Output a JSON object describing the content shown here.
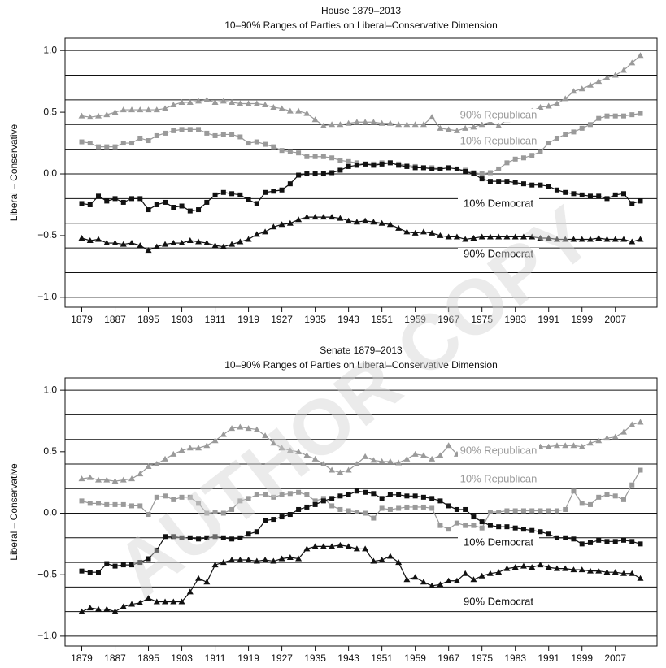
{
  "watermark": "AUTHOR COPY",
  "chart_data": [
    {
      "type": "line",
      "title": "House 1879–2013",
      "subtitle": "10–90% Ranges of Parties on Liberal–Conservative Dimension",
      "ylabel": "Liberal – Conservative",
      "x": [
        1879,
        1881,
        1883,
        1885,
        1887,
        1889,
        1891,
        1893,
        1895,
        1897,
        1899,
        1901,
        1903,
        1905,
        1907,
        1909,
        1911,
        1913,
        1915,
        1917,
        1919,
        1921,
        1923,
        1925,
        1927,
        1929,
        1931,
        1933,
        1935,
        1937,
        1939,
        1941,
        1943,
        1945,
        1947,
        1949,
        1951,
        1953,
        1955,
        1957,
        1959,
        1961,
        1963,
        1965,
        1967,
        1969,
        1971,
        1973,
        1975,
        1977,
        1979,
        1981,
        1983,
        1985,
        1987,
        1989,
        1991,
        1993,
        1995,
        1997,
        1999,
        2001,
        2003,
        2005,
        2007,
        2009,
        2011,
        2013
      ],
      "xlim": [
        1875,
        2017
      ],
      "xticks": [
        1879,
        1887,
        1895,
        1903,
        1911,
        1919,
        1927,
        1935,
        1943,
        1951,
        1959,
        1967,
        1975,
        1983,
        1991,
        1999,
        2007
      ],
      "ylim": [
        -1.08,
        1.1
      ],
      "yticks": [
        {
          "value": -1,
          "label": "−1.0"
        },
        {
          "value": -0.5,
          "label": "−0.5"
        },
        {
          "value": 0,
          "label": "0.0"
        },
        {
          "value": 0.5,
          "label": "0.5"
        },
        {
          "value": 1,
          "label": "1.0"
        }
      ],
      "hlines": [
        -1,
        -0.8,
        -0.6,
        -0.4,
        -0.2,
        0,
        0.2,
        0.4,
        0.6,
        0.8,
        1
      ],
      "series": [
        {
          "name": "90% Republican",
          "color": "#9a9a9a",
          "marker": "triangle",
          "values": [
            0.47,
            0.46,
            0.47,
            0.48,
            0.5,
            0.52,
            0.52,
            0.52,
            0.52,
            0.52,
            0.53,
            0.56,
            0.58,
            0.58,
            0.59,
            0.6,
            0.58,
            0.59,
            0.58,
            0.57,
            0.57,
            0.57,
            0.56,
            0.54,
            0.53,
            0.51,
            0.51,
            0.49,
            0.44,
            0.39,
            0.4,
            0.4,
            0.41,
            0.42,
            0.42,
            0.42,
            0.41,
            0.41,
            0.4,
            0.4,
            0.4,
            0.4,
            0.46,
            0.37,
            0.36,
            0.35,
            0.37,
            0.38,
            0.4,
            0.42,
            0.39,
            0.44,
            0.47,
            0.49,
            0.51,
            0.54,
            0.55,
            0.57,
            0.61,
            0.67,
            0.69,
            0.72,
            0.75,
            0.78,
            0.8,
            0.84,
            0.9,
            0.96
          ]
        },
        {
          "name": "10% Republican",
          "color": "#9a9a9a",
          "marker": "square",
          "values": [
            0.26,
            0.25,
            0.22,
            0.22,
            0.22,
            0.25,
            0.25,
            0.29,
            0.27,
            0.31,
            0.33,
            0.35,
            0.36,
            0.36,
            0.36,
            0.33,
            0.31,
            0.32,
            0.32,
            0.3,
            0.25,
            0.26,
            0.24,
            0.22,
            0.19,
            0.18,
            0.17,
            0.14,
            0.14,
            0.14,
            0.13,
            0.11,
            0.1,
            0.09,
            0.08,
            0.08,
            0.09,
            0.09,
            0.08,
            0.07,
            0.06,
            0.05,
            0.05,
            0.04,
            0.05,
            0.04,
            0.03,
            0.01,
            0.0,
            0.01,
            0.04,
            0.09,
            0.12,
            0.13,
            0.15,
            0.18,
            0.25,
            0.29,
            0.32,
            0.34,
            0.37,
            0.4,
            0.45,
            0.47,
            0.47,
            0.47,
            0.48,
            0.49
          ]
        },
        {
          "name": "10% Democrat",
          "color": "#111111",
          "marker": "square",
          "values": [
            -0.24,
            -0.25,
            -0.18,
            -0.22,
            -0.2,
            -0.23,
            -0.2,
            -0.2,
            -0.29,
            -0.25,
            -0.23,
            -0.27,
            -0.26,
            -0.3,
            -0.29,
            -0.23,
            -0.17,
            -0.15,
            -0.16,
            -0.17,
            -0.21,
            -0.24,
            -0.15,
            -0.14,
            -0.13,
            -0.08,
            -0.01,
            0.0,
            0.0,
            0.0,
            0.01,
            0.03,
            0.06,
            0.07,
            0.08,
            0.07,
            0.08,
            0.09,
            0.07,
            0.06,
            0.05,
            0.05,
            0.04,
            0.04,
            0.05,
            0.04,
            0.02,
            0.0,
            -0.04,
            -0.06,
            -0.06,
            -0.06,
            -0.07,
            -0.08,
            -0.09,
            -0.09,
            -0.1,
            -0.13,
            -0.15,
            -0.16,
            -0.17,
            -0.18,
            -0.18,
            -0.2,
            -0.17,
            -0.16,
            -0.24,
            -0.22
          ]
        },
        {
          "name": "90% Democrat",
          "color": "#111111",
          "marker": "triangle",
          "values": [
            -0.52,
            -0.54,
            -0.53,
            -0.56,
            -0.56,
            -0.57,
            -0.56,
            -0.58,
            -0.62,
            -0.59,
            -0.57,
            -0.56,
            -0.56,
            -0.54,
            -0.55,
            -0.56,
            -0.58,
            -0.59,
            -0.57,
            -0.55,
            -0.53,
            -0.49,
            -0.47,
            -0.43,
            -0.41,
            -0.4,
            -0.37,
            -0.35,
            -0.35,
            -0.35,
            -0.35,
            -0.36,
            -0.38,
            -0.39,
            -0.38,
            -0.39,
            -0.4,
            -0.41,
            -0.44,
            -0.47,
            -0.48,
            -0.47,
            -0.48,
            -0.5,
            -0.51,
            -0.51,
            -0.53,
            -0.52,
            -0.51,
            -0.51,
            -0.51,
            -0.51,
            -0.51,
            -0.51,
            -0.51,
            -0.52,
            -0.52,
            -0.53,
            -0.53,
            -0.53,
            -0.53,
            -0.53,
            -0.52,
            -0.53,
            -0.53,
            -0.53,
            -0.55,
            -0.53
          ]
        }
      ]
    },
    {
      "type": "line",
      "title": "Senate 1879–2013",
      "subtitle": "10–90% Ranges of Parties on Liberal–Conservative Dimension",
      "ylabel": "Liberal – Conservative",
      "x": [
        1879,
        1881,
        1883,
        1885,
        1887,
        1889,
        1891,
        1893,
        1895,
        1897,
        1899,
        1901,
        1903,
        1905,
        1907,
        1909,
        1911,
        1913,
        1915,
        1917,
        1919,
        1921,
        1923,
        1925,
        1927,
        1929,
        1931,
        1933,
        1935,
        1937,
        1939,
        1941,
        1943,
        1945,
        1947,
        1949,
        1951,
        1953,
        1955,
        1957,
        1959,
        1961,
        1963,
        1965,
        1967,
        1969,
        1971,
        1973,
        1975,
        1977,
        1979,
        1981,
        1983,
        1985,
        1987,
        1989,
        1991,
        1993,
        1995,
        1997,
        1999,
        2001,
        2003,
        2005,
        2007,
        2009,
        2011,
        2013
      ],
      "xlim": [
        1875,
        2017
      ],
      "xticks": [
        1879,
        1887,
        1895,
        1903,
        1911,
        1919,
        1927,
        1935,
        1943,
        1951,
        1959,
        1967,
        1975,
        1983,
        1991,
        1999,
        2007
      ],
      "ylim": [
        -1.08,
        1.1
      ],
      "yticks": [
        {
          "value": -1,
          "label": "−1.0"
        },
        {
          "value": -0.5,
          "label": "−0.5"
        },
        {
          "value": 0,
          "label": "0.0"
        },
        {
          "value": 0.5,
          "label": "0.5"
        },
        {
          "value": 1,
          "label": "1.0"
        }
      ],
      "hlines": [
        -1,
        -0.8,
        -0.6,
        -0.4,
        -0.2,
        0,
        0.2,
        0.4,
        0.6,
        0.8,
        1
      ],
      "series": [
        {
          "name": "90% Republican",
          "color": "#9a9a9a",
          "marker": "triangle",
          "values": [
            0.28,
            0.29,
            0.27,
            0.27,
            0.26,
            0.27,
            0.28,
            0.32,
            0.38,
            0.4,
            0.44,
            0.48,
            0.51,
            0.53,
            0.53,
            0.55,
            0.59,
            0.64,
            0.69,
            0.7,
            0.69,
            0.68,
            0.63,
            0.57,
            0.53,
            0.51,
            0.5,
            0.47,
            0.44,
            0.4,
            0.35,
            0.33,
            0.35,
            0.4,
            0.46,
            0.43,
            0.42,
            0.42,
            0.41,
            0.44,
            0.48,
            0.47,
            0.44,
            0.47,
            0.55,
            0.48,
            0.49,
            0.48,
            0.5,
            0.47,
            0.52,
            0.52,
            0.51,
            0.52,
            0.53,
            0.54,
            0.54,
            0.55,
            0.55,
            0.55,
            0.54,
            0.57,
            0.59,
            0.61,
            0.62,
            0.66,
            0.72,
            0.74
          ]
        },
        {
          "name": "10% Republican",
          "color": "#9a9a9a",
          "marker": "square",
          "values": [
            0.1,
            0.08,
            0.08,
            0.07,
            0.07,
            0.07,
            0.06,
            0.06,
            -0.01,
            0.13,
            0.14,
            0.11,
            0.13,
            0.13,
            0.08,
            0.0,
            0.01,
            0.0,
            0.03,
            0.1,
            0.12,
            0.15,
            0.15,
            0.13,
            0.15,
            0.16,
            0.17,
            0.15,
            0.1,
            0.12,
            0.06,
            0.03,
            0.02,
            0.01,
            0.0,
            -0.04,
            0.04,
            0.03,
            0.04,
            0.05,
            0.05,
            0.05,
            0.04,
            -0.1,
            -0.13,
            -0.08,
            -0.1,
            -0.1,
            -0.12,
            0.01,
            0.01,
            0.02,
            0.02,
            0.02,
            0.02,
            0.02,
            0.02,
            0.02,
            0.03,
            0.18,
            0.08,
            0.07,
            0.13,
            0.15,
            0.14,
            0.11,
            0.23,
            0.35
          ]
        },
        {
          "name": "10% Democrat",
          "color": "#111111",
          "marker": "square",
          "values": [
            -0.47,
            -0.48,
            -0.48,
            -0.41,
            -0.43,
            -0.42,
            -0.42,
            -0.4,
            -0.37,
            -0.3,
            -0.19,
            -0.19,
            -0.2,
            -0.2,
            -0.21,
            -0.2,
            -0.19,
            -0.2,
            -0.21,
            -0.2,
            -0.17,
            -0.15,
            -0.06,
            -0.05,
            -0.03,
            -0.01,
            0.03,
            0.05,
            0.07,
            0.1,
            0.12,
            0.14,
            0.15,
            0.18,
            0.17,
            0.16,
            0.12,
            0.15,
            0.15,
            0.14,
            0.14,
            0.13,
            0.12,
            0.1,
            0.06,
            0.03,
            0.03,
            -0.03,
            -0.07,
            -0.1,
            -0.11,
            -0.11,
            -0.12,
            -0.13,
            -0.14,
            -0.15,
            -0.17,
            -0.2,
            -0.2,
            -0.21,
            -0.25,
            -0.24,
            -0.22,
            -0.23,
            -0.23,
            -0.22,
            -0.23,
            -0.25
          ]
        },
        {
          "name": "90% Democrat",
          "color": "#111111",
          "marker": "triangle",
          "values": [
            -0.8,
            -0.77,
            -0.78,
            -0.78,
            -0.8,
            -0.76,
            -0.74,
            -0.73,
            -0.69,
            -0.72,
            -0.72,
            -0.72,
            -0.72,
            -0.64,
            -0.53,
            -0.56,
            -0.42,
            -0.4,
            -0.38,
            -0.38,
            -0.38,
            -0.39,
            -0.38,
            -0.39,
            -0.37,
            -0.36,
            -0.37,
            -0.29,
            -0.27,
            -0.27,
            -0.27,
            -0.26,
            -0.27,
            -0.29,
            -0.29,
            -0.39,
            -0.38,
            -0.35,
            -0.4,
            -0.54,
            -0.52,
            -0.56,
            -0.59,
            -0.58,
            -0.55,
            -0.55,
            -0.49,
            -0.54,
            -0.51,
            -0.49,
            -0.48,
            -0.45,
            -0.44,
            -0.43,
            -0.44,
            -0.42,
            -0.44,
            -0.45,
            -0.45,
            -0.46,
            -0.46,
            -0.47,
            -0.47,
            -0.48,
            -0.48,
            -0.49,
            -0.49,
            -0.53
          ]
        }
      ]
    }
  ]
}
